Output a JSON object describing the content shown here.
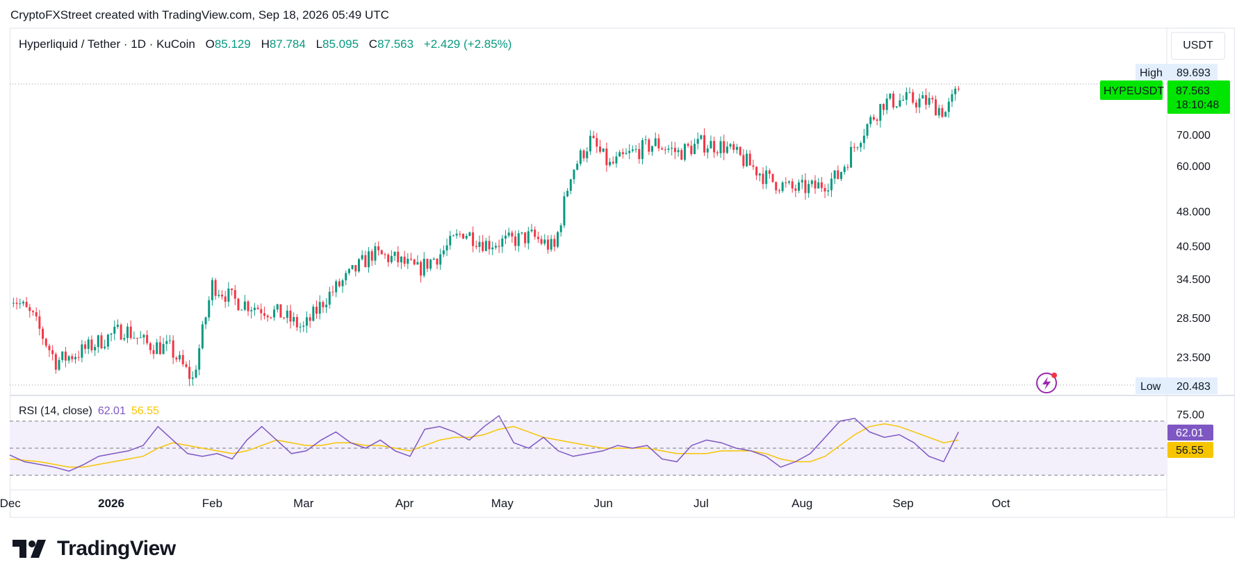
{
  "header": {
    "credit": "CryptoFXStreet created with TradingView.com, Sep 18, 2026 05:49 UTC"
  },
  "legend": {
    "symbol": "Hyperliquid / Tether · 1D · KuCoin",
    "o_label": "O",
    "o_value": "85.129",
    "h_label": "H",
    "h_value": "87.784",
    "l_label": "L",
    "l_value": "85.095",
    "c_label": "C",
    "c_value": "87.563",
    "change": "+2.429 (+2.85%)"
  },
  "currency": "USDT",
  "price_axis": {
    "high_label": "High",
    "high_value": "89.693",
    "low_label": "Low",
    "low_value": "20.483",
    "symbol_tag": "HYPEUSDT",
    "last_price": "87.563",
    "countdown": "18:10:48",
    "ticks": [
      "70.000",
      "60.000",
      "48.000",
      "40.500",
      "34.500",
      "28.500",
      "23.500"
    ]
  },
  "rsi": {
    "title": "RSI (14, close)",
    "rsi_value": "62.01",
    "ma_value": "56.55",
    "top_tick": "75.00",
    "upper_band": 70,
    "lower_band": 30
  },
  "time_axis": [
    "Dec",
    "2026",
    "Feb",
    "Mar",
    "Apr",
    "May",
    "Jun",
    "Jul",
    "Aug",
    "Sep",
    "Oct"
  ],
  "brand": "TradingView",
  "colors": {
    "up": "#089981",
    "down": "#f23645",
    "rsi": "#7e57c2",
    "rsi_ma": "#f7c500",
    "last_price_bg": "#00e600",
    "band_fill": "#f3effb"
  },
  "chart_data": {
    "type": "candlestick",
    "scale": "log",
    "ylim": [
      20.483,
      89.693
    ],
    "series": [
      {
        "x": "2025-12-01",
        "close": 32.0
      },
      {
        "x": "2025-12-08",
        "close": 28.5
      },
      {
        "x": "2025-12-15",
        "close": 23.0
      },
      {
        "x": "2025-12-22",
        "close": 24.0
      },
      {
        "x": "2025-12-29",
        "close": 25.5
      },
      {
        "x": "2026-01-05",
        "close": 27.0
      },
      {
        "x": "2026-01-12",
        "close": 25.0
      },
      {
        "x": "2026-01-19",
        "close": 24.5
      },
      {
        "x": "2026-01-26",
        "close": 21.0
      },
      {
        "x": "2026-02-01",
        "close": 33.5
      },
      {
        "x": "2026-02-08",
        "close": 31.0
      },
      {
        "x": "2026-02-15",
        "close": 30.0
      },
      {
        "x": "2026-02-22",
        "close": 29.0
      },
      {
        "x": "2026-03-01",
        "close": 27.0
      },
      {
        "x": "2026-03-08",
        "close": 31.5
      },
      {
        "x": "2026-03-15",
        "close": 35.0
      },
      {
        "x": "2026-03-22",
        "close": 39.0
      },
      {
        "x": "2026-03-29",
        "close": 38.0
      },
      {
        "x": "2026-04-05",
        "close": 36.0
      },
      {
        "x": "2026-04-12",
        "close": 39.0
      },
      {
        "x": "2026-04-19",
        "close": 43.5
      },
      {
        "x": "2026-04-26",
        "close": 41.0
      },
      {
        "x": "2026-05-03",
        "close": 41.5
      },
      {
        "x": "2026-05-10",
        "close": 42.5
      },
      {
        "x": "2026-05-17",
        "close": 40.0
      },
      {
        "x": "2026-05-22",
        "close": 58.0
      },
      {
        "x": "2026-05-28",
        "close": 68.0
      },
      {
        "x": "2026-06-03",
        "close": 60.0
      },
      {
        "x": "2026-06-10",
        "close": 64.0
      },
      {
        "x": "2026-06-17",
        "close": 67.0
      },
      {
        "x": "2026-06-24",
        "close": 64.0
      },
      {
        "x": "2026-07-01",
        "close": 67.0
      },
      {
        "x": "2026-07-08",
        "close": 66.0
      },
      {
        "x": "2026-07-15",
        "close": 61.0
      },
      {
        "x": "2026-07-22",
        "close": 56.0
      },
      {
        "x": "2026-07-29",
        "close": 53.5
      },
      {
        "x": "2026-08-05",
        "close": 54.0
      },
      {
        "x": "2026-08-12",
        "close": 57.0
      },
      {
        "x": "2026-08-19",
        "close": 70.0
      },
      {
        "x": "2026-08-26",
        "close": 82.0
      },
      {
        "x": "2026-09-02",
        "close": 83.0
      },
      {
        "x": "2026-09-09",
        "close": 82.0
      },
      {
        "x": "2026-09-14",
        "close": 78.0
      },
      {
        "x": "2026-09-18",
        "close": 87.563
      }
    ],
    "rsi_series": [
      {
        "name": "RSI",
        "values": [
          45,
          40,
          38,
          36,
          33,
          38,
          44,
          46,
          48,
          52,
          66,
          56,
          46,
          44,
          46,
          42,
          56,
          66,
          56,
          46,
          48,
          56,
          62,
          54,
          50,
          56,
          48,
          44,
          64,
          66,
          62,
          56,
          66,
          74,
          54,
          50,
          58,
          48,
          44,
          46,
          48,
          52,
          50,
          52,
          42,
          40,
          52,
          56,
          54,
          50,
          48,
          44,
          36,
          40,
          46,
          58,
          70,
          72,
          62,
          58,
          60,
          54,
          44,
          40,
          62
        ]
      },
      {
        "name": "MA",
        "values": [
          42,
          41,
          40,
          38,
          36,
          36,
          38,
          40,
          42,
          44,
          50,
          54,
          52,
          50,
          48,
          46,
          48,
          52,
          56,
          54,
          52,
          52,
          54,
          54,
          52,
          52,
          50,
          48,
          52,
          56,
          58,
          58,
          60,
          64,
          66,
          62,
          58,
          56,
          54,
          52,
          50,
          50,
          50,
          50,
          48,
          46,
          46,
          46,
          48,
          48,
          48,
          46,
          42,
          40,
          40,
          44,
          52,
          60,
          66,
          68,
          66,
          62,
          58,
          54,
          56
        ]
      }
    ]
  }
}
